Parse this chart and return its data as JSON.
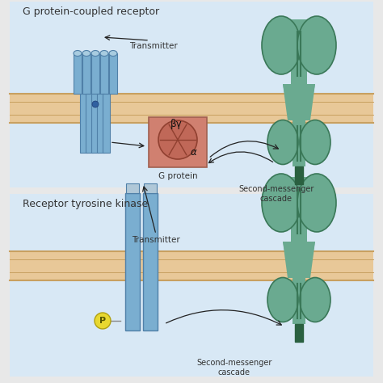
{
  "title_top": "G protein-coupled receptor",
  "title_bottom": "Receptor tyrosine kinase",
  "bg_outer": "#e8e8e8",
  "panel_bg_top": "#d8e8f5",
  "panel_bg_bottom": "#d8e8f5",
  "membrane_fill": "#e8c898",
  "membrane_edge": "#c8a060",
  "receptor_blue": "#7aaed0",
  "receptor_blue_dark": "#5080a8",
  "receptor_blue_light": "#a8cce0",
  "gprotein_box": "#d08070",
  "gprotein_circle": "#c06858",
  "gprotein_spoke": "#904030",
  "ion_channel_fill": "#6aaa90",
  "ion_channel_edge": "#3a7858",
  "ion_channel_dark": "#2a6040",
  "arrow_color": "#222222",
  "label_color": "#333333",
  "phospho_fill": "#e8d830",
  "phospho_edge": "#b0a010",
  "white_bg": "#f0f0f0",
  "transmitter_label": "Transmitter",
  "gprotein_label": "G protein",
  "cascade_label": "Second-messenger\ncascade",
  "beta_gamma": "βγ",
  "alpha": "α",
  "phospho_p": "P"
}
